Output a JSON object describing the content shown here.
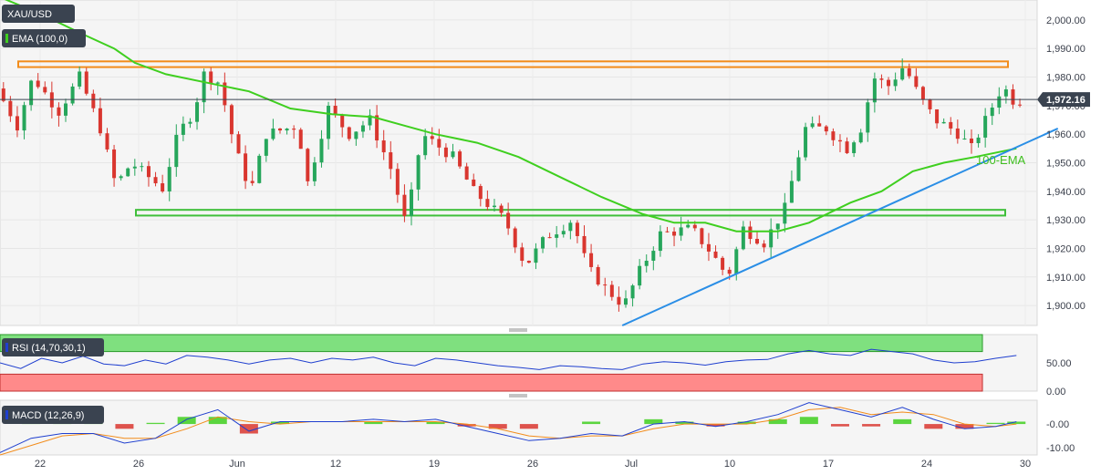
{
  "chart_data": [
    {
      "type": "candlestick",
      "symbol": "XAU/USD",
      "indicator_label": "EMA (100,0)",
      "ema_label": "100-EMA",
      "ylim": [
        1893,
        2007
      ],
      "y_ticks": [
        "2,000.00",
        "1,990.00",
        "1,980.00",
        "1,970.00",
        "1,960.00",
        "1,950.00",
        "1,940.00",
        "1,930.00",
        "1,920.00",
        "1,910.00",
        "1,900.00"
      ],
      "y_tick_values": [
        2000,
        1990,
        1980,
        1970,
        1960,
        1950,
        1940,
        1930,
        1920,
        1910,
        1900
      ],
      "x_ticks": [
        "22",
        "26",
        "Jun",
        "12",
        "19",
        "26",
        "Jul",
        "10",
        "17",
        "24",
        "30"
      ],
      "last_price": 1972.16,
      "last_price_label": "1,972.16",
      "resistance_zone": [
        1983.5,
        1985.5
      ],
      "support_zone": [
        1931.5,
        1933.5
      ],
      "trendline": [
        {
          "t": 0.6,
          "v": 1893
        },
        {
          "t": 1.02,
          "v": 1962
        }
      ],
      "ema_100": [
        {
          "t": 0.0,
          "v": 2008
        },
        {
          "t": 0.04,
          "v": 2002
        },
        {
          "t": 0.08,
          "v": 1995
        },
        {
          "t": 0.11,
          "v": 1990
        },
        {
          "t": 0.13,
          "v": 1985
        },
        {
          "t": 0.16,
          "v": 1981
        },
        {
          "t": 0.2,
          "v": 1978
        },
        {
          "t": 0.24,
          "v": 1975
        },
        {
          "t": 0.28,
          "v": 1969
        },
        {
          "t": 0.32,
          "v": 1967
        },
        {
          "t": 0.36,
          "v": 1966
        },
        {
          "t": 0.39,
          "v": 1963
        },
        {
          "t": 0.42,
          "v": 1960
        },
        {
          "t": 0.46,
          "v": 1957
        },
        {
          "t": 0.5,
          "v": 1952
        },
        {
          "t": 0.54,
          "v": 1945
        },
        {
          "t": 0.58,
          "v": 1938
        },
        {
          "t": 0.62,
          "v": 1932
        },
        {
          "t": 0.65,
          "v": 1929
        },
        {
          "t": 0.68,
          "v": 1929
        },
        {
          "t": 0.71,
          "v": 1926
        },
        {
          "t": 0.75,
          "v": 1926
        },
        {
          "t": 0.78,
          "v": 1929
        },
        {
          "t": 0.82,
          "v": 1936
        },
        {
          "t": 0.85,
          "v": 1940
        },
        {
          "t": 0.88,
          "v": 1947
        },
        {
          "t": 0.91,
          "v": 1950
        },
        {
          "t": 0.94,
          "v": 1952
        },
        {
          "t": 0.98,
          "v": 1955
        }
      ],
      "price_path": [
        {
          "t": 0.0,
          "v": 1976
        },
        {
          "t": 0.02,
          "v": 1963
        },
        {
          "t": 0.035,
          "v": 1980
        },
        {
          "t": 0.06,
          "v": 1968
        },
        {
          "t": 0.08,
          "v": 1980
        },
        {
          "t": 0.1,
          "v": 1962
        },
        {
          "t": 0.115,
          "v": 1942
        },
        {
          "t": 0.13,
          "v": 1950
        },
        {
          "t": 0.16,
          "v": 1941
        },
        {
          "t": 0.175,
          "v": 1960
        },
        {
          "t": 0.19,
          "v": 1968
        },
        {
          "t": 0.2,
          "v": 1981
        },
        {
          "t": 0.215,
          "v": 1978
        },
        {
          "t": 0.23,
          "v": 1955
        },
        {
          "t": 0.245,
          "v": 1940
        },
        {
          "t": 0.26,
          "v": 1960
        },
        {
          "t": 0.29,
          "v": 1963
        },
        {
          "t": 0.3,
          "v": 1943
        },
        {
          "t": 0.32,
          "v": 1969
        },
        {
          "t": 0.34,
          "v": 1960
        },
        {
          "t": 0.36,
          "v": 1965
        },
        {
          "t": 0.38,
          "v": 1948
        },
        {
          "t": 0.395,
          "v": 1928
        },
        {
          "t": 0.41,
          "v": 1960
        },
        {
          "t": 0.44,
          "v": 1952
        },
        {
          "t": 0.46,
          "v": 1940
        },
        {
          "t": 0.49,
          "v": 1930
        },
        {
          "t": 0.51,
          "v": 1914
        },
        {
          "t": 0.53,
          "v": 1924
        },
        {
          "t": 0.555,
          "v": 1930
        },
        {
          "t": 0.57,
          "v": 1913
        },
        {
          "t": 0.59,
          "v": 1905
        },
        {
          "t": 0.605,
          "v": 1900
        },
        {
          "t": 0.62,
          "v": 1912
        },
        {
          "t": 0.64,
          "v": 1925
        },
        {
          "t": 0.67,
          "v": 1927
        },
        {
          "t": 0.69,
          "v": 1918
        },
        {
          "t": 0.705,
          "v": 1910
        },
        {
          "t": 0.72,
          "v": 1927
        },
        {
          "t": 0.74,
          "v": 1922
        },
        {
          "t": 0.76,
          "v": 1934
        },
        {
          "t": 0.78,
          "v": 1962
        },
        {
          "t": 0.8,
          "v": 1962
        },
        {
          "t": 0.82,
          "v": 1955
        },
        {
          "t": 0.835,
          "v": 1963
        },
        {
          "t": 0.845,
          "v": 1980
        },
        {
          "t": 0.86,
          "v": 1977
        },
        {
          "t": 0.875,
          "v": 1984
        },
        {
          "t": 0.89,
          "v": 1973
        },
        {
          "t": 0.905,
          "v": 1965
        },
        {
          "t": 0.925,
          "v": 1961
        },
        {
          "t": 0.94,
          "v": 1955
        },
        {
          "t": 0.955,
          "v": 1966
        },
        {
          "t": 0.97,
          "v": 1977
        },
        {
          "t": 0.98,
          "v": 1972
        }
      ]
    },
    {
      "type": "line",
      "name": "RSI (14,70,30,1)",
      "ylim": [
        0,
        100
      ],
      "y_ticks": [
        "50.00",
        "0.00"
      ],
      "y_tick_values": [
        50,
        0
      ],
      "overbought": 70,
      "oversold": 30,
      "path": [
        {
          "t": 0.0,
          "v": 50
        },
        {
          "t": 0.02,
          "v": 40
        },
        {
          "t": 0.04,
          "v": 58
        },
        {
          "t": 0.06,
          "v": 50
        },
        {
          "t": 0.08,
          "v": 62
        },
        {
          "t": 0.1,
          "v": 48
        },
        {
          "t": 0.12,
          "v": 45
        },
        {
          "t": 0.14,
          "v": 55
        },
        {
          "t": 0.16,
          "v": 48
        },
        {
          "t": 0.18,
          "v": 63
        },
        {
          "t": 0.2,
          "v": 60
        },
        {
          "t": 0.22,
          "v": 55
        },
        {
          "t": 0.24,
          "v": 48
        },
        {
          "t": 0.26,
          "v": 55
        },
        {
          "t": 0.28,
          "v": 58
        },
        {
          "t": 0.3,
          "v": 50
        },
        {
          "t": 0.32,
          "v": 58
        },
        {
          "t": 0.34,
          "v": 55
        },
        {
          "t": 0.36,
          "v": 60
        },
        {
          "t": 0.38,
          "v": 50
        },
        {
          "t": 0.4,
          "v": 45
        },
        {
          "t": 0.42,
          "v": 58
        },
        {
          "t": 0.44,
          "v": 55
        },
        {
          "t": 0.46,
          "v": 50
        },
        {
          "t": 0.48,
          "v": 45
        },
        {
          "t": 0.5,
          "v": 42
        },
        {
          "t": 0.52,
          "v": 38
        },
        {
          "t": 0.54,
          "v": 45
        },
        {
          "t": 0.56,
          "v": 43
        },
        {
          "t": 0.58,
          "v": 40
        },
        {
          "t": 0.6,
          "v": 38
        },
        {
          "t": 0.62,
          "v": 48
        },
        {
          "t": 0.64,
          "v": 52
        },
        {
          "t": 0.66,
          "v": 50
        },
        {
          "t": 0.68,
          "v": 46
        },
        {
          "t": 0.7,
          "v": 52
        },
        {
          "t": 0.72,
          "v": 55
        },
        {
          "t": 0.74,
          "v": 56
        },
        {
          "t": 0.76,
          "v": 66
        },
        {
          "t": 0.78,
          "v": 72
        },
        {
          "t": 0.8,
          "v": 66
        },
        {
          "t": 0.82,
          "v": 63
        },
        {
          "t": 0.84,
          "v": 74
        },
        {
          "t": 0.86,
          "v": 70
        },
        {
          "t": 0.88,
          "v": 66
        },
        {
          "t": 0.9,
          "v": 55
        },
        {
          "t": 0.92,
          "v": 50
        },
        {
          "t": 0.94,
          "v": 52
        },
        {
          "t": 0.96,
          "v": 58
        },
        {
          "t": 0.98,
          "v": 63
        }
      ]
    },
    {
      "type": "line",
      "name": "MACD (12,26,9)",
      "ylim": [
        -13,
        10
      ],
      "y_ticks": [
        "-0.00",
        "-10.00"
      ],
      "y_tick_values": [
        0,
        -10
      ],
      "macd": [
        {
          "t": 0.0,
          "v": -12
        },
        {
          "t": 0.03,
          "v": -6
        },
        {
          "t": 0.06,
          "v": -4
        },
        {
          "t": 0.09,
          "v": -4
        },
        {
          "t": 0.12,
          "v": -8
        },
        {
          "t": 0.15,
          "v": -6
        },
        {
          "t": 0.18,
          "v": 2
        },
        {
          "t": 0.21,
          "v": 6
        },
        {
          "t": 0.24,
          "v": -3
        },
        {
          "t": 0.27,
          "v": 1
        },
        {
          "t": 0.3,
          "v": 1
        },
        {
          "t": 0.33,
          "v": 1
        },
        {
          "t": 0.36,
          "v": 2
        },
        {
          "t": 0.39,
          "v": 1
        },
        {
          "t": 0.42,
          "v": 2
        },
        {
          "t": 0.45,
          "v": -1
        },
        {
          "t": 0.48,
          "v": -4
        },
        {
          "t": 0.51,
          "v": -7
        },
        {
          "t": 0.54,
          "v": -6
        },
        {
          "t": 0.57,
          "v": -4
        },
        {
          "t": 0.6,
          "v": -5
        },
        {
          "t": 0.63,
          "v": 0
        },
        {
          "t": 0.66,
          "v": 1
        },
        {
          "t": 0.69,
          "v": -1
        },
        {
          "t": 0.72,
          "v": 1
        },
        {
          "t": 0.75,
          "v": 4
        },
        {
          "t": 0.78,
          "v": 9
        },
        {
          "t": 0.81,
          "v": 6
        },
        {
          "t": 0.84,
          "v": 3
        },
        {
          "t": 0.87,
          "v": 7
        },
        {
          "t": 0.9,
          "v": 2
        },
        {
          "t": 0.93,
          "v": -2
        },
        {
          "t": 0.96,
          "v": -1
        },
        {
          "t": 0.98,
          "v": 1
        }
      ],
      "signal": [
        {
          "t": 0.0,
          "v": -13
        },
        {
          "t": 0.03,
          "v": -9
        },
        {
          "t": 0.06,
          "v": -5
        },
        {
          "t": 0.09,
          "v": -4
        },
        {
          "t": 0.12,
          "v": -6
        },
        {
          "t": 0.15,
          "v": -6
        },
        {
          "t": 0.18,
          "v": -2
        },
        {
          "t": 0.21,
          "v": 3
        },
        {
          "t": 0.24,
          "v": 1
        },
        {
          "t": 0.27,
          "v": 0
        },
        {
          "t": 0.3,
          "v": 1
        },
        {
          "t": 0.33,
          "v": 1
        },
        {
          "t": 0.36,
          "v": 1
        },
        {
          "t": 0.39,
          "v": 1
        },
        {
          "t": 0.42,
          "v": 1
        },
        {
          "t": 0.45,
          "v": 0
        },
        {
          "t": 0.48,
          "v": -2
        },
        {
          "t": 0.51,
          "v": -5
        },
        {
          "t": 0.54,
          "v": -6
        },
        {
          "t": 0.57,
          "v": -5
        },
        {
          "t": 0.6,
          "v": -5
        },
        {
          "t": 0.63,
          "v": -2
        },
        {
          "t": 0.66,
          "v": 0
        },
        {
          "t": 0.69,
          "v": 0
        },
        {
          "t": 0.72,
          "v": 0
        },
        {
          "t": 0.75,
          "v": 2
        },
        {
          "t": 0.78,
          "v": 6
        },
        {
          "t": 0.81,
          "v": 7
        },
        {
          "t": 0.84,
          "v": 4
        },
        {
          "t": 0.87,
          "v": 5
        },
        {
          "t": 0.9,
          "v": 4
        },
        {
          "t": 0.93,
          "v": 0
        },
        {
          "t": 0.96,
          "v": -1
        },
        {
          "t": 0.98,
          "v": 0
        }
      ],
      "histogram": [
        {
          "t": 0.03,
          "v": 2
        },
        {
          "t": 0.06,
          "v": 1
        },
        {
          "t": 0.09,
          "v": 1
        },
        {
          "t": 0.12,
          "v": -2
        },
        {
          "t": 0.15,
          "v": 0.5
        },
        {
          "t": 0.18,
          "v": 3
        },
        {
          "t": 0.21,
          "v": 3
        },
        {
          "t": 0.24,
          "v": -4
        },
        {
          "t": 0.27,
          "v": 1
        },
        {
          "t": 0.36,
          "v": 1
        },
        {
          "t": 0.42,
          "v": 1
        },
        {
          "t": 0.45,
          "v": -1
        },
        {
          "t": 0.48,
          "v": -2
        },
        {
          "t": 0.51,
          "v": -2
        },
        {
          "t": 0.57,
          "v": 1
        },
        {
          "t": 0.63,
          "v": 2
        },
        {
          "t": 0.66,
          "v": 1
        },
        {
          "t": 0.69,
          "v": -1
        },
        {
          "t": 0.72,
          "v": 1
        },
        {
          "t": 0.75,
          "v": 2
        },
        {
          "t": 0.78,
          "v": 3
        },
        {
          "t": 0.81,
          "v": -1
        },
        {
          "t": 0.84,
          "v": -1
        },
        {
          "t": 0.87,
          "v": 2
        },
        {
          "t": 0.9,
          "v": -2
        },
        {
          "t": 0.93,
          "v": -2
        },
        {
          "t": 0.96,
          "v": 0.5
        },
        {
          "t": 0.98,
          "v": 1
        }
      ]
    }
  ],
  "colors": {
    "bull": "#26a65b",
    "bear": "#d9362f",
    "ema": "#3fcf1f",
    "trend": "#2a8ee6",
    "resistance": "#f28c1b",
    "support": "#3fbf3a",
    "rsi_line": "#1f3fcf",
    "macd_line": "#1f3fcf",
    "signal_line": "#f28c1b",
    "rsi_ob": "#7fe07f",
    "rsi_os": "#ff8a8a",
    "price_tag": "#3a4350"
  }
}
